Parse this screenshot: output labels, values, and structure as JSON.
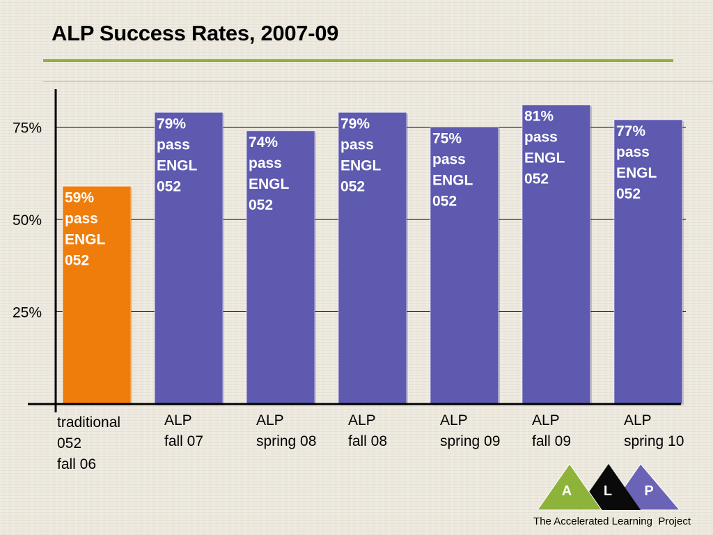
{
  "slide": {
    "footer": "The Accelerated Learning  Project"
  },
  "logo": {
    "letters": [
      "A",
      "L",
      "P"
    ],
    "colors": [
      "#8db33a",
      "#0a0a0a",
      "#6b63b5"
    ]
  },
  "colors": {
    "accent_rule": "#8db33a",
    "highlight_bar": "#ef7d0b",
    "alp_bar": "#5d5ab0",
    "gridline": "#000000"
  },
  "chart_data": {
    "type": "bar",
    "title": "ALP Success Rates, 2007-09",
    "categories": [
      [
        "traditional",
        "052",
        "fall 06"
      ],
      [
        "ALP",
        "fall 07"
      ],
      [
        "ALP",
        "spring 08"
      ],
      [
        "ALP",
        "fall 08"
      ],
      [
        "ALP",
        "spring 09"
      ],
      [
        "ALP",
        "fall 09"
      ],
      [
        "ALP",
        "spring 10"
      ]
    ],
    "values": [
      59,
      79,
      74,
      79,
      75,
      81,
      77
    ],
    "bar_labels": [
      [
        "59%",
        "pass",
        "ENGL",
        "052"
      ],
      [
        "79%",
        "pass",
        "ENGL",
        "052"
      ],
      [
        "74%",
        "pass",
        "ENGL",
        "052"
      ],
      [
        "79%",
        "pass",
        "ENGL",
        "052"
      ],
      [
        "75%",
        "pass",
        "ENGL",
        "052"
      ],
      [
        "81%",
        "pass",
        "ENGL",
        "052"
      ],
      [
        "77%",
        "pass",
        "ENGL",
        "052"
      ]
    ],
    "bar_colors": [
      "#ef7d0b",
      "#5d5ab0",
      "#5d5ab0",
      "#5d5ab0",
      "#5d5ab0",
      "#5d5ab0",
      "#5d5ab0"
    ],
    "label_colors": [
      "#ffffff",
      "#ffffff",
      "#ffffff",
      "#ffffff",
      "#ffffff",
      "#ffffff",
      "#ffffff"
    ],
    "yticks": [
      25,
      50,
      75
    ],
    "ytick_labels": [
      "25%",
      "50%",
      "75%"
    ],
    "ylim": [
      0,
      85
    ],
    "grid": true,
    "xlabel": "",
    "ylabel": ""
  }
}
